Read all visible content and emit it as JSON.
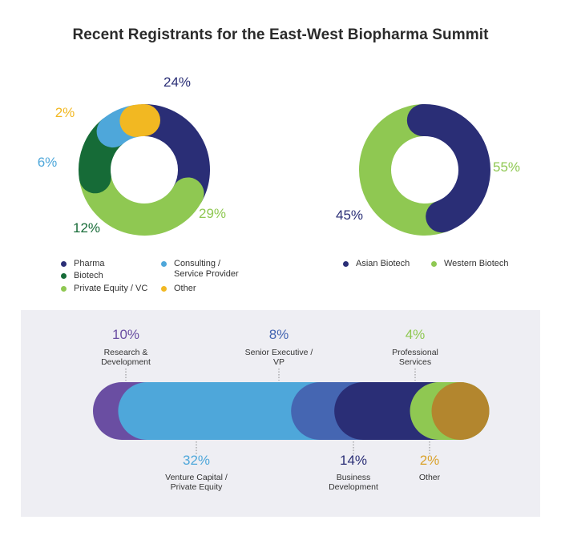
{
  "title": "Recent Registrants for the East-West Biopharma Summit",
  "chart_data": [
    {
      "type": "pie",
      "variant": "donut",
      "slices": [
        {
          "label": "Pharma",
          "value": 24,
          "color": "#2a2e76",
          "text": "24%"
        },
        {
          "label": "Private Equity / VC",
          "value": 29,
          "color": "#8fc852",
          "text": "29%"
        },
        {
          "label": "Biotech",
          "value": 12,
          "color": "#166b37",
          "text": "12%"
        },
        {
          "label": "Consulting / Service Provider",
          "value": 6,
          "color": "#4ea7da",
          "text": "6%"
        },
        {
          "label": "Other",
          "value": 2,
          "color": "#f2b822",
          "text": "2%"
        }
      ],
      "legend": [
        {
          "label": "Pharma",
          "color": "#2a2e76"
        },
        {
          "label": "Biotech",
          "color": "#166b37"
        },
        {
          "label": "Private Equity / VC",
          "color": "#8fc852"
        },
        {
          "label": "Consulting / Service Provider",
          "color": "#4ea7da"
        },
        {
          "label": "Other",
          "color": "#f2b822"
        }
      ]
    },
    {
      "type": "pie",
      "variant": "donut",
      "slices": [
        {
          "label": "Western Biotech",
          "value": 55,
          "color": "#8fc852",
          "text": "55%"
        },
        {
          "label": "Asian Biotech",
          "value": 45,
          "color": "#2a2e76",
          "text": "45%"
        }
      ],
      "legend": [
        {
          "label": "Asian Biotech",
          "color": "#2a2e76"
        },
        {
          "label": "Western Biotech",
          "color": "#8fc852"
        }
      ]
    },
    {
      "type": "bar",
      "variant": "stacked-rounded",
      "segments": [
        {
          "label": "Research & Development",
          "value": 10,
          "text": "10%",
          "color": "#6a4ea2",
          "label_position": "top"
        },
        {
          "label": "Venture Capital / Private Equity",
          "value": 32,
          "text": "32%",
          "color": "#4ea7da",
          "label_position": "bottom"
        },
        {
          "label": "Senior Executive / VP",
          "value": 8,
          "text": "8%",
          "color": "#4566b2",
          "label_position": "top"
        },
        {
          "label": "Business Development",
          "value": 14,
          "text": "14%",
          "color": "#2a2e76",
          "label_position": "bottom"
        },
        {
          "label": "Professional Services",
          "value": 4,
          "text": "4%",
          "color": "#8fc852",
          "label_position": "top"
        },
        {
          "label": "Other",
          "value": 2,
          "text": "2%",
          "color": "#b3862e",
          "label_position": "bottom"
        }
      ]
    }
  ]
}
